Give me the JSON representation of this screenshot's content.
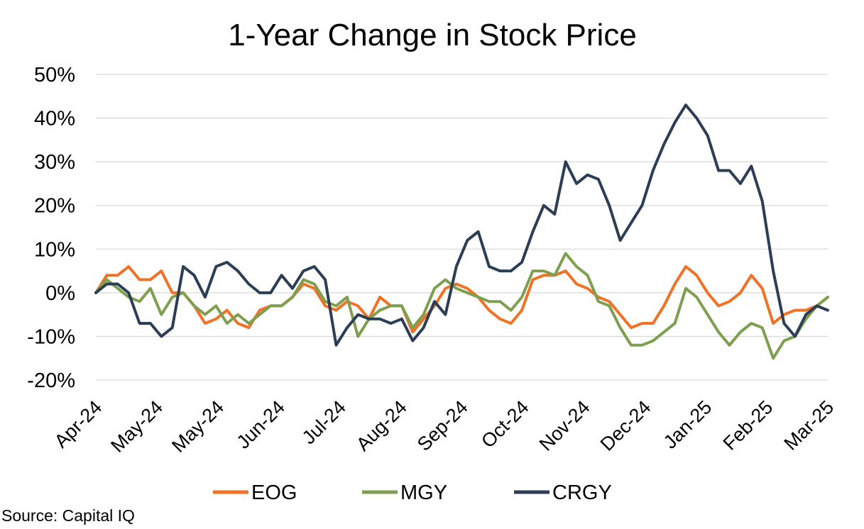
{
  "chart_data": {
    "type": "line",
    "title": "1-Year Change in Stock Price",
    "xlabel": "",
    "ylabel": "",
    "ylim": [
      -20,
      50
    ],
    "y_ticks": [
      50,
      40,
      30,
      20,
      10,
      0,
      -10,
      -20
    ],
    "y_tick_labels": [
      "50%",
      "40%",
      "30%",
      "20%",
      "10%",
      "0%",
      "-10%",
      "-20%"
    ],
    "x_tick_labels": [
      "Apr-24",
      "May-24",
      "May-24",
      "Jun-24",
      "Jul-24",
      "Aug-24",
      "Sep-24",
      "Oct-24",
      "Nov-24",
      "Dec-24",
      "Jan-25",
      "Feb-25",
      "Mar-25"
    ],
    "grid": true,
    "legend_position": "bottom",
    "series": [
      {
        "name": "EOG",
        "color": "#F07227",
        "values": [
          0,
          4,
          4,
          6,
          3,
          3,
          5,
          0,
          0,
          -3,
          -7,
          -6,
          -4,
          -7,
          -8,
          -4,
          -3,
          -3,
          -1,
          2,
          1,
          -3,
          -4,
          -2,
          -3,
          -6,
          -1,
          -3,
          -3,
          -9,
          -6,
          -3,
          1,
          2,
          1,
          -1,
          -4,
          -6,
          -7,
          -4,
          3,
          4,
          4,
          5,
          2,
          1,
          -1,
          -2,
          -5,
          -8,
          -7,
          -7,
          -3,
          2,
          6,
          4,
          0,
          -3,
          -2,
          0,
          4,
          1,
          -7,
          -5,
          -4,
          -4,
          -3,
          -1
        ]
      },
      {
        "name": "MGY",
        "color": "#7F9F50",
        "values": [
          0,
          3,
          1,
          -1,
          -2,
          1,
          -5,
          -1,
          0,
          -3,
          -5,
          -3,
          -7,
          -5,
          -7,
          -5,
          -3,
          -3,
          -1,
          3,
          2,
          -2,
          -3,
          -1,
          -10,
          -6,
          -4,
          -3,
          -3,
          -8,
          -5,
          1,
          3,
          1,
          0,
          -1,
          -2,
          -2,
          -4,
          -1,
          5,
          5,
          4,
          9,
          6,
          4,
          -2,
          -3,
          -8,
          -12,
          -12,
          -11,
          -9,
          -7,
          1,
          -1,
          -5,
          -9,
          -12,
          -9,
          -7,
          -8,
          -15,
          -11,
          -10,
          -6,
          -3,
          -1
        ]
      },
      {
        "name": "CRGY",
        "color": "#2C3E56",
        "values": [
          0,
          2,
          2,
          0,
          -7,
          -7,
          -10,
          -8,
          6,
          4,
          -1,
          6,
          7,
          5,
          2,
          0,
          0,
          4,
          1,
          5,
          6,
          3,
          -12,
          -8,
          -5,
          -6,
          -6,
          -7,
          -6,
          -11,
          -8,
          -2,
          -5,
          6,
          12,
          14,
          6,
          5,
          5,
          7,
          14,
          20,
          18,
          30,
          25,
          27,
          26,
          20,
          12,
          16,
          20,
          28,
          34,
          39,
          43,
          40,
          36,
          28,
          28,
          25,
          29,
          21,
          5,
          -7,
          -10,
          -5,
          -3,
          -4
        ]
      }
    ]
  },
  "source_text": "Source: Capital IQ"
}
